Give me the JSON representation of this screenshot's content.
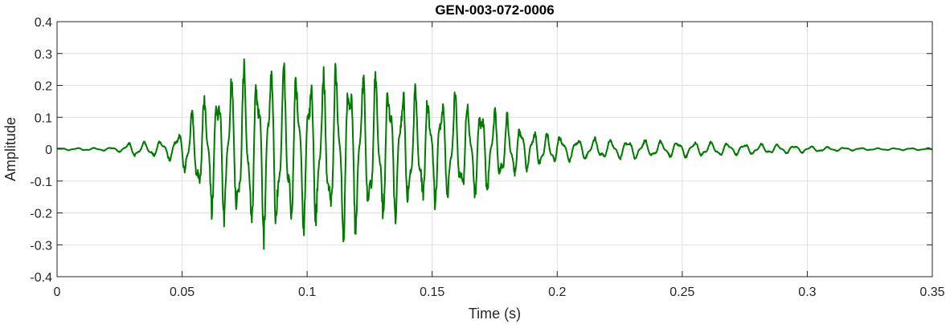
{
  "chart_data": {
    "type": "line",
    "title": "GEN-003-072-0006",
    "xlabel": "Time (s)",
    "ylabel": "Amplitude",
    "xlim": [
      0,
      0.35
    ],
    "ylim": [
      -0.4,
      0.4
    ],
    "grid": true,
    "xticks": [
      0,
      0.05,
      0.1,
      0.15,
      0.2,
      0.25,
      0.3,
      0.35
    ],
    "xtick_labels": [
      "0",
      "0.05",
      "0.1",
      "0.15",
      "0.2",
      "0.25",
      "0.3",
      "0.35"
    ],
    "yticks": [
      0.4,
      0.3,
      0.2,
      0.1,
      0,
      -0.1,
      -0.2,
      -0.3,
      -0.4
    ],
    "ytick_labels": [
      "0.4",
      "0.3",
      "0.2",
      "0.1",
      "0",
      "-0.1",
      "-0.2",
      "-0.3",
      "-0.4"
    ],
    "line_color": "#007a00",
    "series": [
      {
        "x": [
          0,
          0.005,
          0.01,
          0.015,
          0.02,
          0.025,
          0.03,
          0.035,
          0.04,
          0.045,
          0.05,
          0.055,
          0.06,
          0.065,
          0.07,
          0.075,
          0.08,
          0.085,
          0.09,
          0.095,
          0.1,
          0.105,
          0.11,
          0.115,
          0.12,
          0.125,
          0.13,
          0.135,
          0.14,
          0.145,
          0.15,
          0.155,
          0.16,
          0.165,
          0.17,
          0.175,
          0.18,
          0.185,
          0.19,
          0.195,
          0.2,
          0.205,
          0.21,
          0.215,
          0.22,
          0.225,
          0.23,
          0.235,
          0.24,
          0.245,
          0.25,
          0.255,
          0.26,
          0.265,
          0.27,
          0.275,
          0.28,
          0.285,
          0.29,
          0.295,
          0.3,
          0.305,
          0.31,
          0.315,
          0.32,
          0.325,
          0.33,
          0.335,
          0.34,
          0.345,
          0.35
        ],
        "envelope": [
          0.004,
          0.004,
          0.005,
          0.005,
          0.006,
          0.01,
          0.03,
          0.025,
          0.03,
          0.04,
          0.07,
          0.16,
          0.22,
          0.25,
          0.28,
          0.3,
          0.31,
          0.33,
          0.32,
          0.3,
          0.29,
          0.27,
          0.3,
          0.33,
          0.3,
          0.26,
          0.27,
          0.26,
          0.22,
          0.21,
          0.2,
          0.2,
          0.2,
          0.18,
          0.17,
          0.14,
          0.12,
          0.09,
          0.07,
          0.06,
          0.05,
          0.045,
          0.04,
          0.04,
          0.035,
          0.035,
          0.035,
          0.035,
          0.03,
          0.03,
          0.03,
          0.028,
          0.027,
          0.025,
          0.022,
          0.02,
          0.02,
          0.018,
          0.017,
          0.015,
          0.012,
          0.01,
          0.008,
          0.006,
          0.005,
          0.004,
          0.004,
          0.004,
          0.004,
          0.004,
          0.004
        ]
      }
    ]
  }
}
